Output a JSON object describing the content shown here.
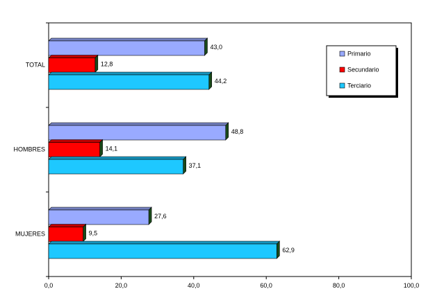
{
  "chart_data": {
    "type": "bar",
    "orientation": "horizontal",
    "categories": [
      "TOTAL",
      "HOMBRES",
      "MUJERES"
    ],
    "series": [
      {
        "name": "Primario",
        "color": "#99aaff",
        "values": [
          43.0,
          48.8,
          27.6
        ],
        "labels": [
          "43,0",
          "48,8",
          "27,6"
        ]
      },
      {
        "name": "Secundario",
        "color": "#ff0000",
        "values": [
          12.8,
          14.1,
          9.5
        ],
        "labels": [
          "12,8",
          "14,1",
          "9,5"
        ]
      },
      {
        "name": "Terciario",
        "color": "#1ec8ff",
        "values": [
          44.2,
          37.1,
          62.9
        ],
        "labels": [
          "44,2",
          "37,1",
          "62,9"
        ]
      }
    ],
    "xlim": [
      0,
      100
    ],
    "x_ticks": [
      0,
      20,
      40,
      60,
      80,
      100
    ],
    "x_tick_labels": [
      "0,0",
      "20,0",
      "40,0",
      "60,0",
      "80,0",
      "100,0"
    ],
    "grid": false,
    "legend_position": "top-right",
    "title": "",
    "xlabel": "",
    "ylabel": ""
  }
}
